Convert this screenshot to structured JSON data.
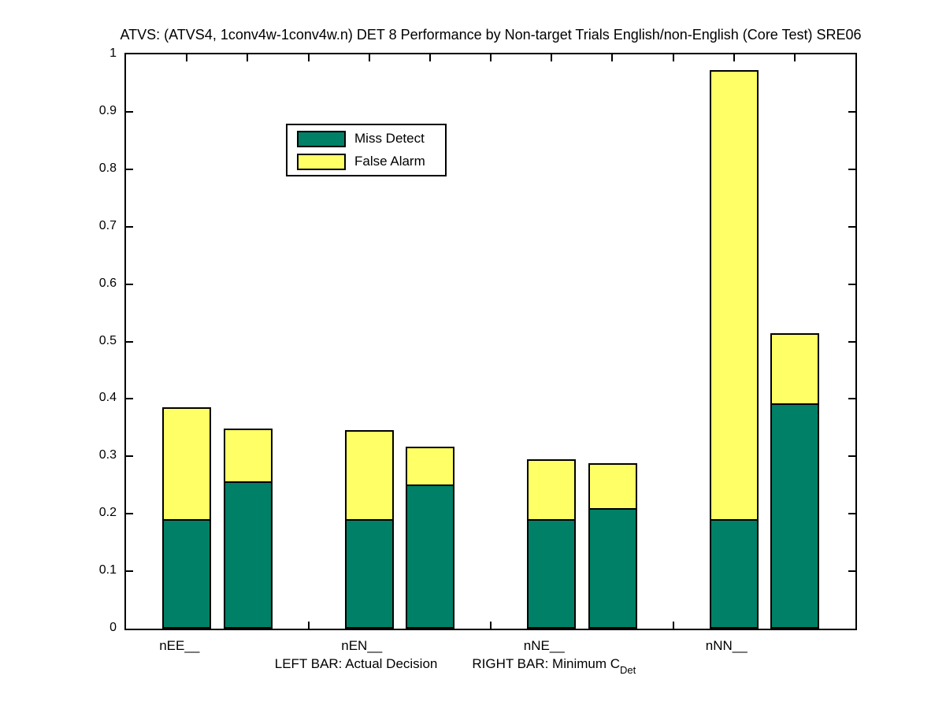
{
  "title": "ATVS: (ATVS4, 1conv4w-1conv4w.n) DET 8 Performance by Non-target Trials English/non-English (Core Test) SRE06",
  "colors": {
    "miss_detect": "#008066",
    "false_alarm": "#FFFF66",
    "axis": "#000000",
    "background": "#FFFFFF"
  },
  "legend": {
    "position": "upper-left-inside",
    "items": [
      {
        "label": "Miss Detect",
        "color": "#008066"
      },
      {
        "label": "False Alarm",
        "color": "#FFFF66"
      }
    ]
  },
  "xlabel": {
    "left": "LEFT BAR: Actual Decision",
    "right": "RIGHT BAR: Minimum C",
    "subscript": "Det"
  },
  "chart_data": {
    "type": "bar",
    "stacked": true,
    "grid": false,
    "title": "ATVS: (ATVS4, 1conv4w-1conv4w.n) DET 8 Performance by Non-target Trials English/non-English (Core Test) SRE06",
    "xlabel": "LEFT BAR: Actual Decision     RIGHT BAR: Minimum C_Det",
    "ylabel": "",
    "ylim": [
      0,
      1
    ],
    "yticks": [
      0,
      0.1,
      0.2,
      0.3,
      0.4,
      0.5,
      0.6,
      0.7,
      0.8,
      0.9,
      1
    ],
    "categories": [
      "nEE__",
      "nEN__",
      "nNE__",
      "nNN__"
    ],
    "bar_semantics": {
      "left": "Actual Decision",
      "right": "Minimum CDet"
    },
    "series_names": [
      "Miss Detect",
      "False Alarm"
    ],
    "groups": [
      {
        "category": "nEE__",
        "actual": {
          "miss_detect": 0.188,
          "false_alarm": 0.197,
          "total": 0.385
        },
        "min_cdet": {
          "miss_detect": 0.254,
          "false_alarm": 0.095,
          "total": 0.349
        }
      },
      {
        "category": "nEN__",
        "actual": {
          "miss_detect": 0.188,
          "false_alarm": 0.157,
          "total": 0.345
        },
        "min_cdet": {
          "miss_detect": 0.248,
          "false_alarm": 0.069,
          "total": 0.317
        }
      },
      {
        "category": "nNE__",
        "actual": {
          "miss_detect": 0.188,
          "false_alarm": 0.107,
          "total": 0.295
        },
        "min_cdet": {
          "miss_detect": 0.207,
          "false_alarm": 0.081,
          "total": 0.288
        }
      },
      {
        "category": "nNN__",
        "actual": {
          "miss_detect": 0.188,
          "false_alarm": 0.785,
          "total": 0.973
        },
        "min_cdet": {
          "miss_detect": 0.389,
          "false_alarm": 0.125,
          "total": 0.514
        }
      }
    ]
  }
}
